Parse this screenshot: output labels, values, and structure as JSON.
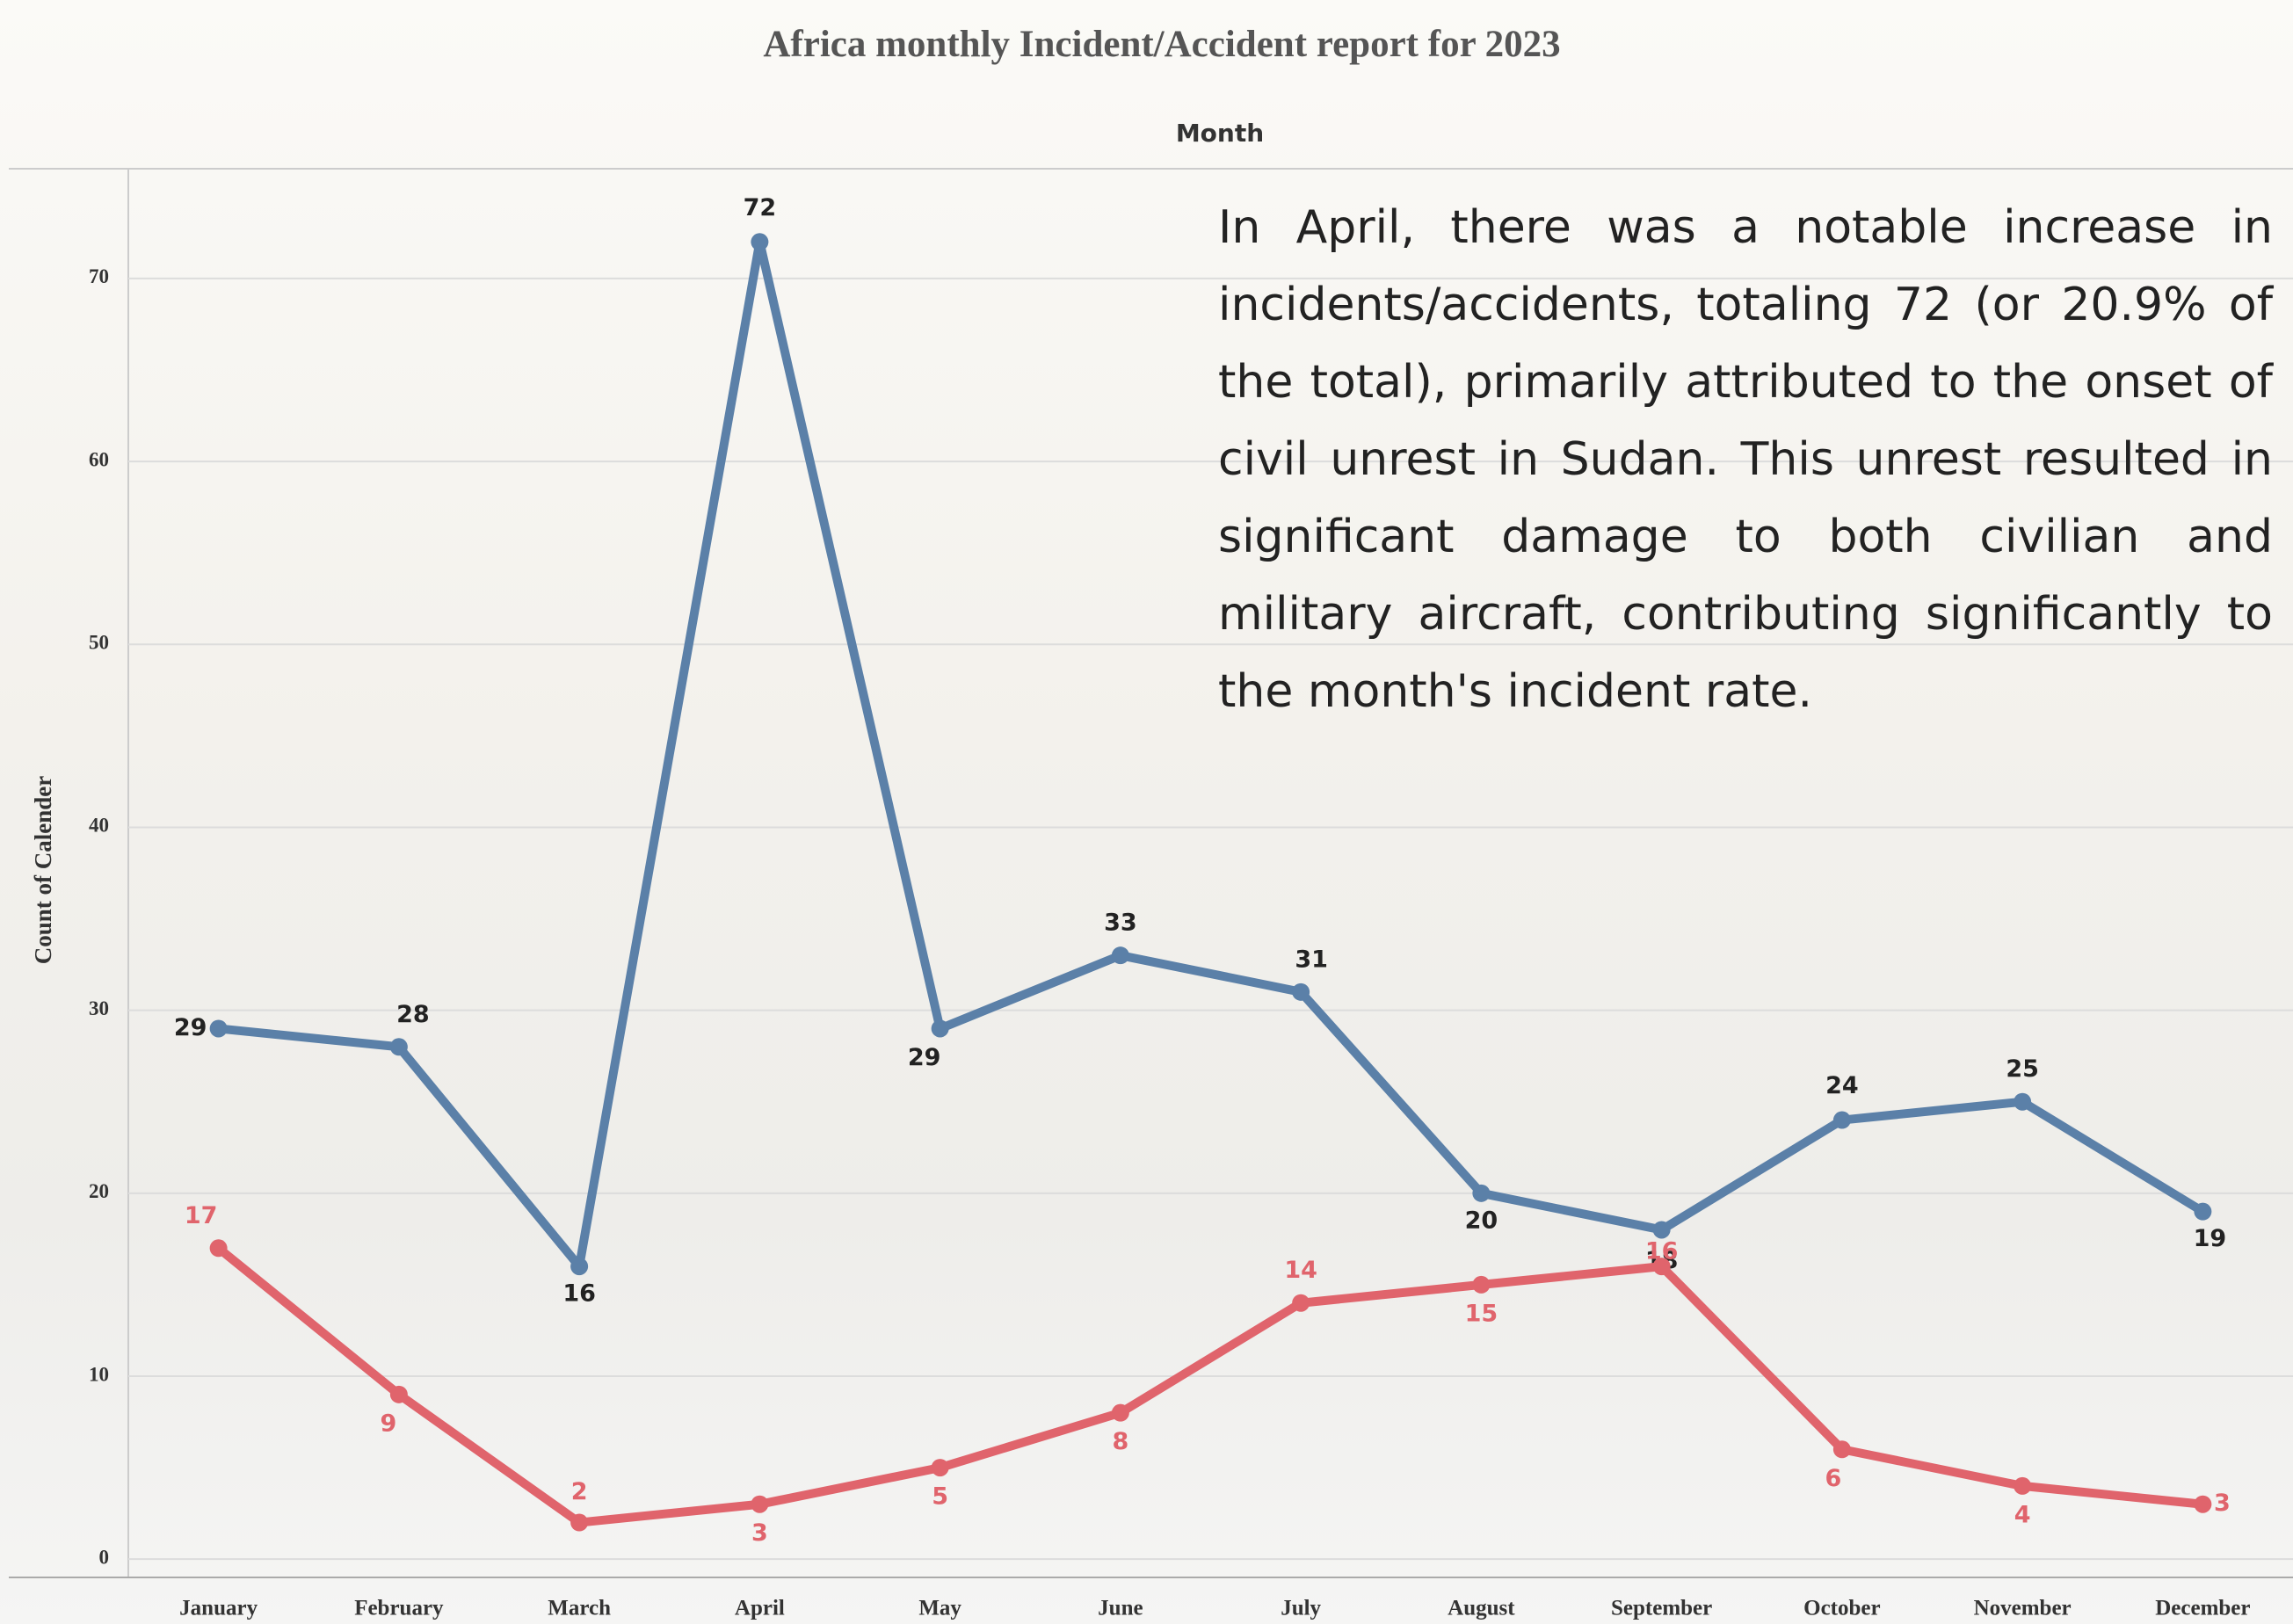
{
  "chart_data": {
    "type": "line",
    "title": "Africa monthly Incident/Accident report for 2023",
    "x_label": "Month",
    "y_label": "Count of Calender",
    "annotation": "In April, there was a notable increase in incidents/accidents, totaling 72 (or 20.9% of the total), primarily attributed to the onset of civil unrest in Sudan. This unrest resulted in significant damage to both civilian and military aircraft, contributing significantly to the month's incident rate.",
    "categories": [
      "January",
      "February",
      "March",
      "April",
      "May",
      "June",
      "July",
      "August",
      "September",
      "October",
      "November",
      "December"
    ],
    "series": [
      {
        "color": "#5b80a8",
        "values": [
          29,
          28,
          16,
          72,
          29,
          33,
          31,
          20,
          18,
          24,
          25,
          19
        ]
      },
      {
        "color": "#e0646c",
        "values": [
          17,
          9,
          2,
          3,
          5,
          8,
          14,
          15,
          16,
          6,
          4,
          3
        ]
      }
    ],
    "ylim": [
      -1,
      76
    ],
    "yticks": [
      0,
      10,
      20,
      30,
      40,
      50,
      60,
      70
    ],
    "grid": true
  }
}
